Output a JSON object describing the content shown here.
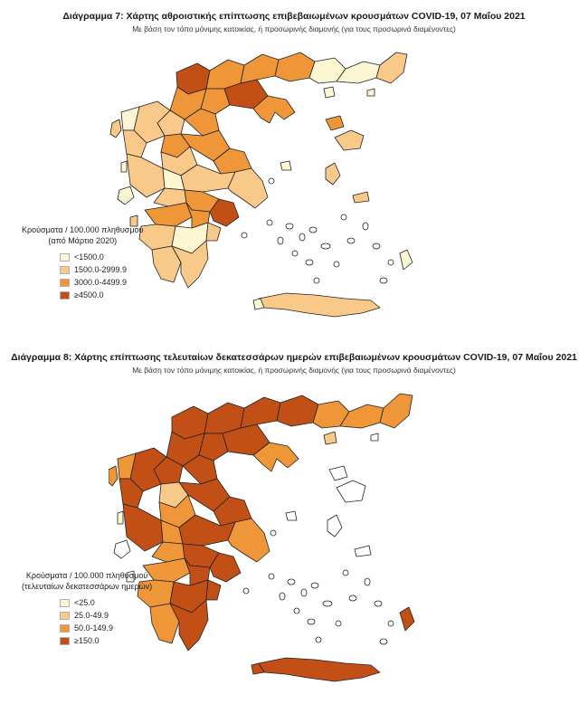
{
  "colors": {
    "c1": "#fdf6d2",
    "c2": "#f9c98a",
    "c3": "#ee9638",
    "c4": "#c24f15",
    "outline": "#222222"
  },
  "maps": [
    {
      "title": "Διάγραμμα 7: Χάρτης αθροιστικής επίπτωσης επιβεβαιωμένων κρουσμάτων COVID-19, 07 Μαΐου 2021",
      "subtitle": "Με βάση τον τόπο μόνιμης κατοικίας, ή προσωρινής διαμονής (για τους προσωρινά διαμένοντες)",
      "legend": {
        "title_line1": "Κρούσματα / 100.000 πληθυσμού",
        "title_line2": "(από Μάρτιο 2020)",
        "items": [
          {
            "label": "<1500.0",
            "color": "#fdf6d2"
          },
          {
            "label": "1500.0-2999.9",
            "color": "#f9c98a"
          },
          {
            "label": "3000.0-4499.9",
            "color": "#ee9638"
          },
          {
            "label": "≥4500.0",
            "color": "#c24f15"
          }
        ]
      }
    },
    {
      "title": "Διάγραμμα 8: Χάρτης επίπτωσης τελευταίων δεκατεσσάρων ημερών επιβεβαιωμένων κρουσμάτων COVID-19, 07 Μαΐου 2021",
      "subtitle": "Με βάση τον τόπο μόνιμης κατοικίας, ή προσωρινής διαμονής (για τους προσωρινά διαμένοντες)",
      "legend": {
        "title_line1": "Κρούσματα / 100.000 πληθυσμού",
        "title_line2": "(τελευταίων δεκατεσσάρων ημερών)",
        "items": [
          {
            "label": "<25.0",
            "color": "#fdf6d2"
          },
          {
            "label": "25.0-49.9",
            "color": "#f9c98a"
          },
          {
            "label": "50.0-149.9",
            "color": "#ee9638"
          },
          {
            "label": "≥150.0",
            "color": "#c24f15"
          }
        ]
      }
    }
  ]
}
